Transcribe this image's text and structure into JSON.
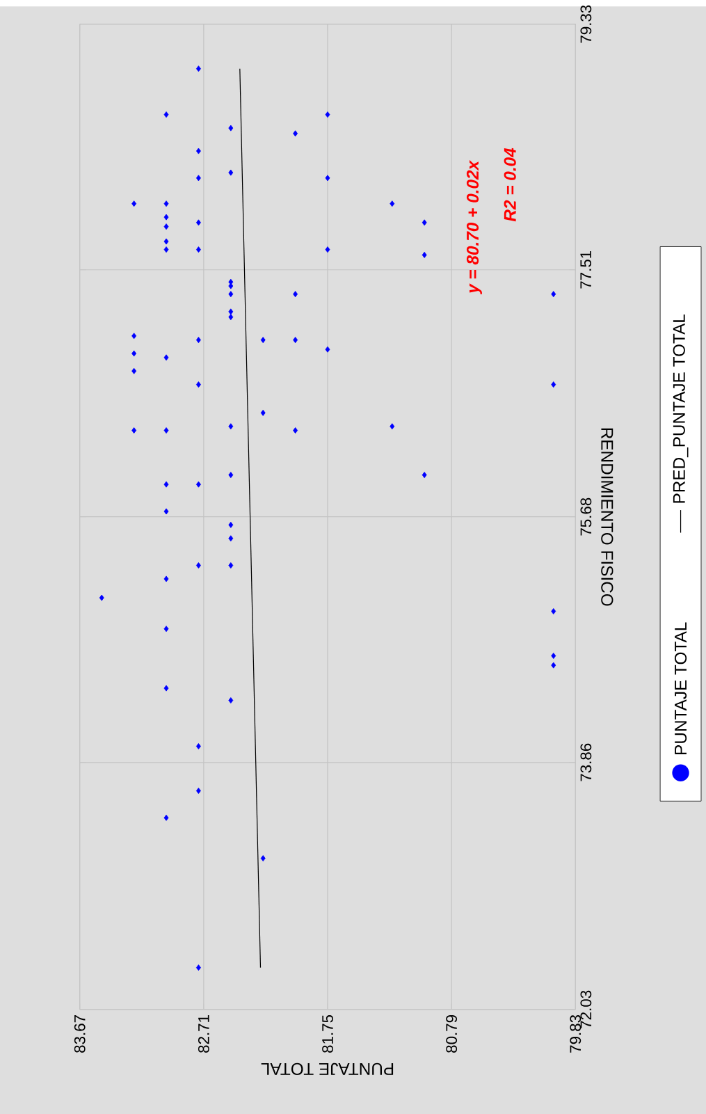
{
  "chart_data": {
    "type": "scatter",
    "xlabel": "PUNTAJE TOTAL",
    "ylabel": "RENDIMIENTO FISICO",
    "xlim": [
      83.67,
      79.83
    ],
    "ylim": [
      72.03,
      79.33
    ],
    "xticks": [
      83.67,
      82.71,
      81.75,
      80.79,
      79.83
    ],
    "yticks": [
      72.03,
      73.86,
      75.68,
      77.51,
      79.33
    ],
    "grid": true,
    "legend": "right",
    "annotations": [
      "y = 80.70 + 0.02x",
      "R2 = 0.04"
    ],
    "series": [
      {
        "name": "PUNTAJE TOTAL",
        "type": "scatter",
        "marker": "diamond",
        "color": "#0000ff",
        "x": [
          82.75,
          83.0,
          81.75,
          82.5,
          82.0,
          82.75,
          82.5,
          82.75,
          81.75,
          83.25,
          83.0,
          81.25,
          83.0,
          83.0,
          82.75,
          81.0,
          83.0,
          83.0,
          82.75,
          81.75,
          81.0,
          82.5,
          82.5,
          82.5,
          82.0,
          80.0,
          82.5,
          82.5,
          83.25,
          83.25,
          83.0,
          83.25,
          82.75,
          82.25,
          82.0,
          81.75,
          82.75,
          80.0,
          82.25,
          83.25,
          83.0,
          82.0,
          82.5,
          81.25,
          82.5,
          81.0,
          83.0,
          82.75,
          83.0,
          82.5,
          82.5,
          82.75,
          82.5,
          83.0,
          83.5,
          80.0,
          83.0,
          80.0,
          80.0,
          83.0,
          82.5,
          82.75,
          82.75,
          83.0,
          82.25,
          82.75
        ],
        "values": [
          79.0,
          78.66,
          78.66,
          78.56,
          78.52,
          78.39,
          78.23,
          78.19,
          78.19,
          78.0,
          78.0,
          78.0,
          77.9,
          77.83,
          77.86,
          77.86,
          77.72,
          77.66,
          77.66,
          77.66,
          77.62,
          77.42,
          77.39,
          77.33,
          77.33,
          77.33,
          77.2,
          77.16,
          77.02,
          76.89,
          76.86,
          76.76,
          76.99,
          76.99,
          76.99,
          76.92,
          76.66,
          76.66,
          76.45,
          76.32,
          76.32,
          76.32,
          76.35,
          76.35,
          75.99,
          75.99,
          75.92,
          75.92,
          75.72,
          75.62,
          75.52,
          75.32,
          75.32,
          75.22,
          75.08,
          74.98,
          74.85,
          74.65,
          74.58,
          74.41,
          74.32,
          73.98,
          73.65,
          73.45,
          73.15,
          72.34
        ]
      },
      {
        "name": "PRED_PUNTAJE TOTAL",
        "type": "line",
        "color": "#000000",
        "x": [
          82.27,
          82.43
        ],
        "values": [
          72.34,
          79.0
        ]
      }
    ]
  }
}
